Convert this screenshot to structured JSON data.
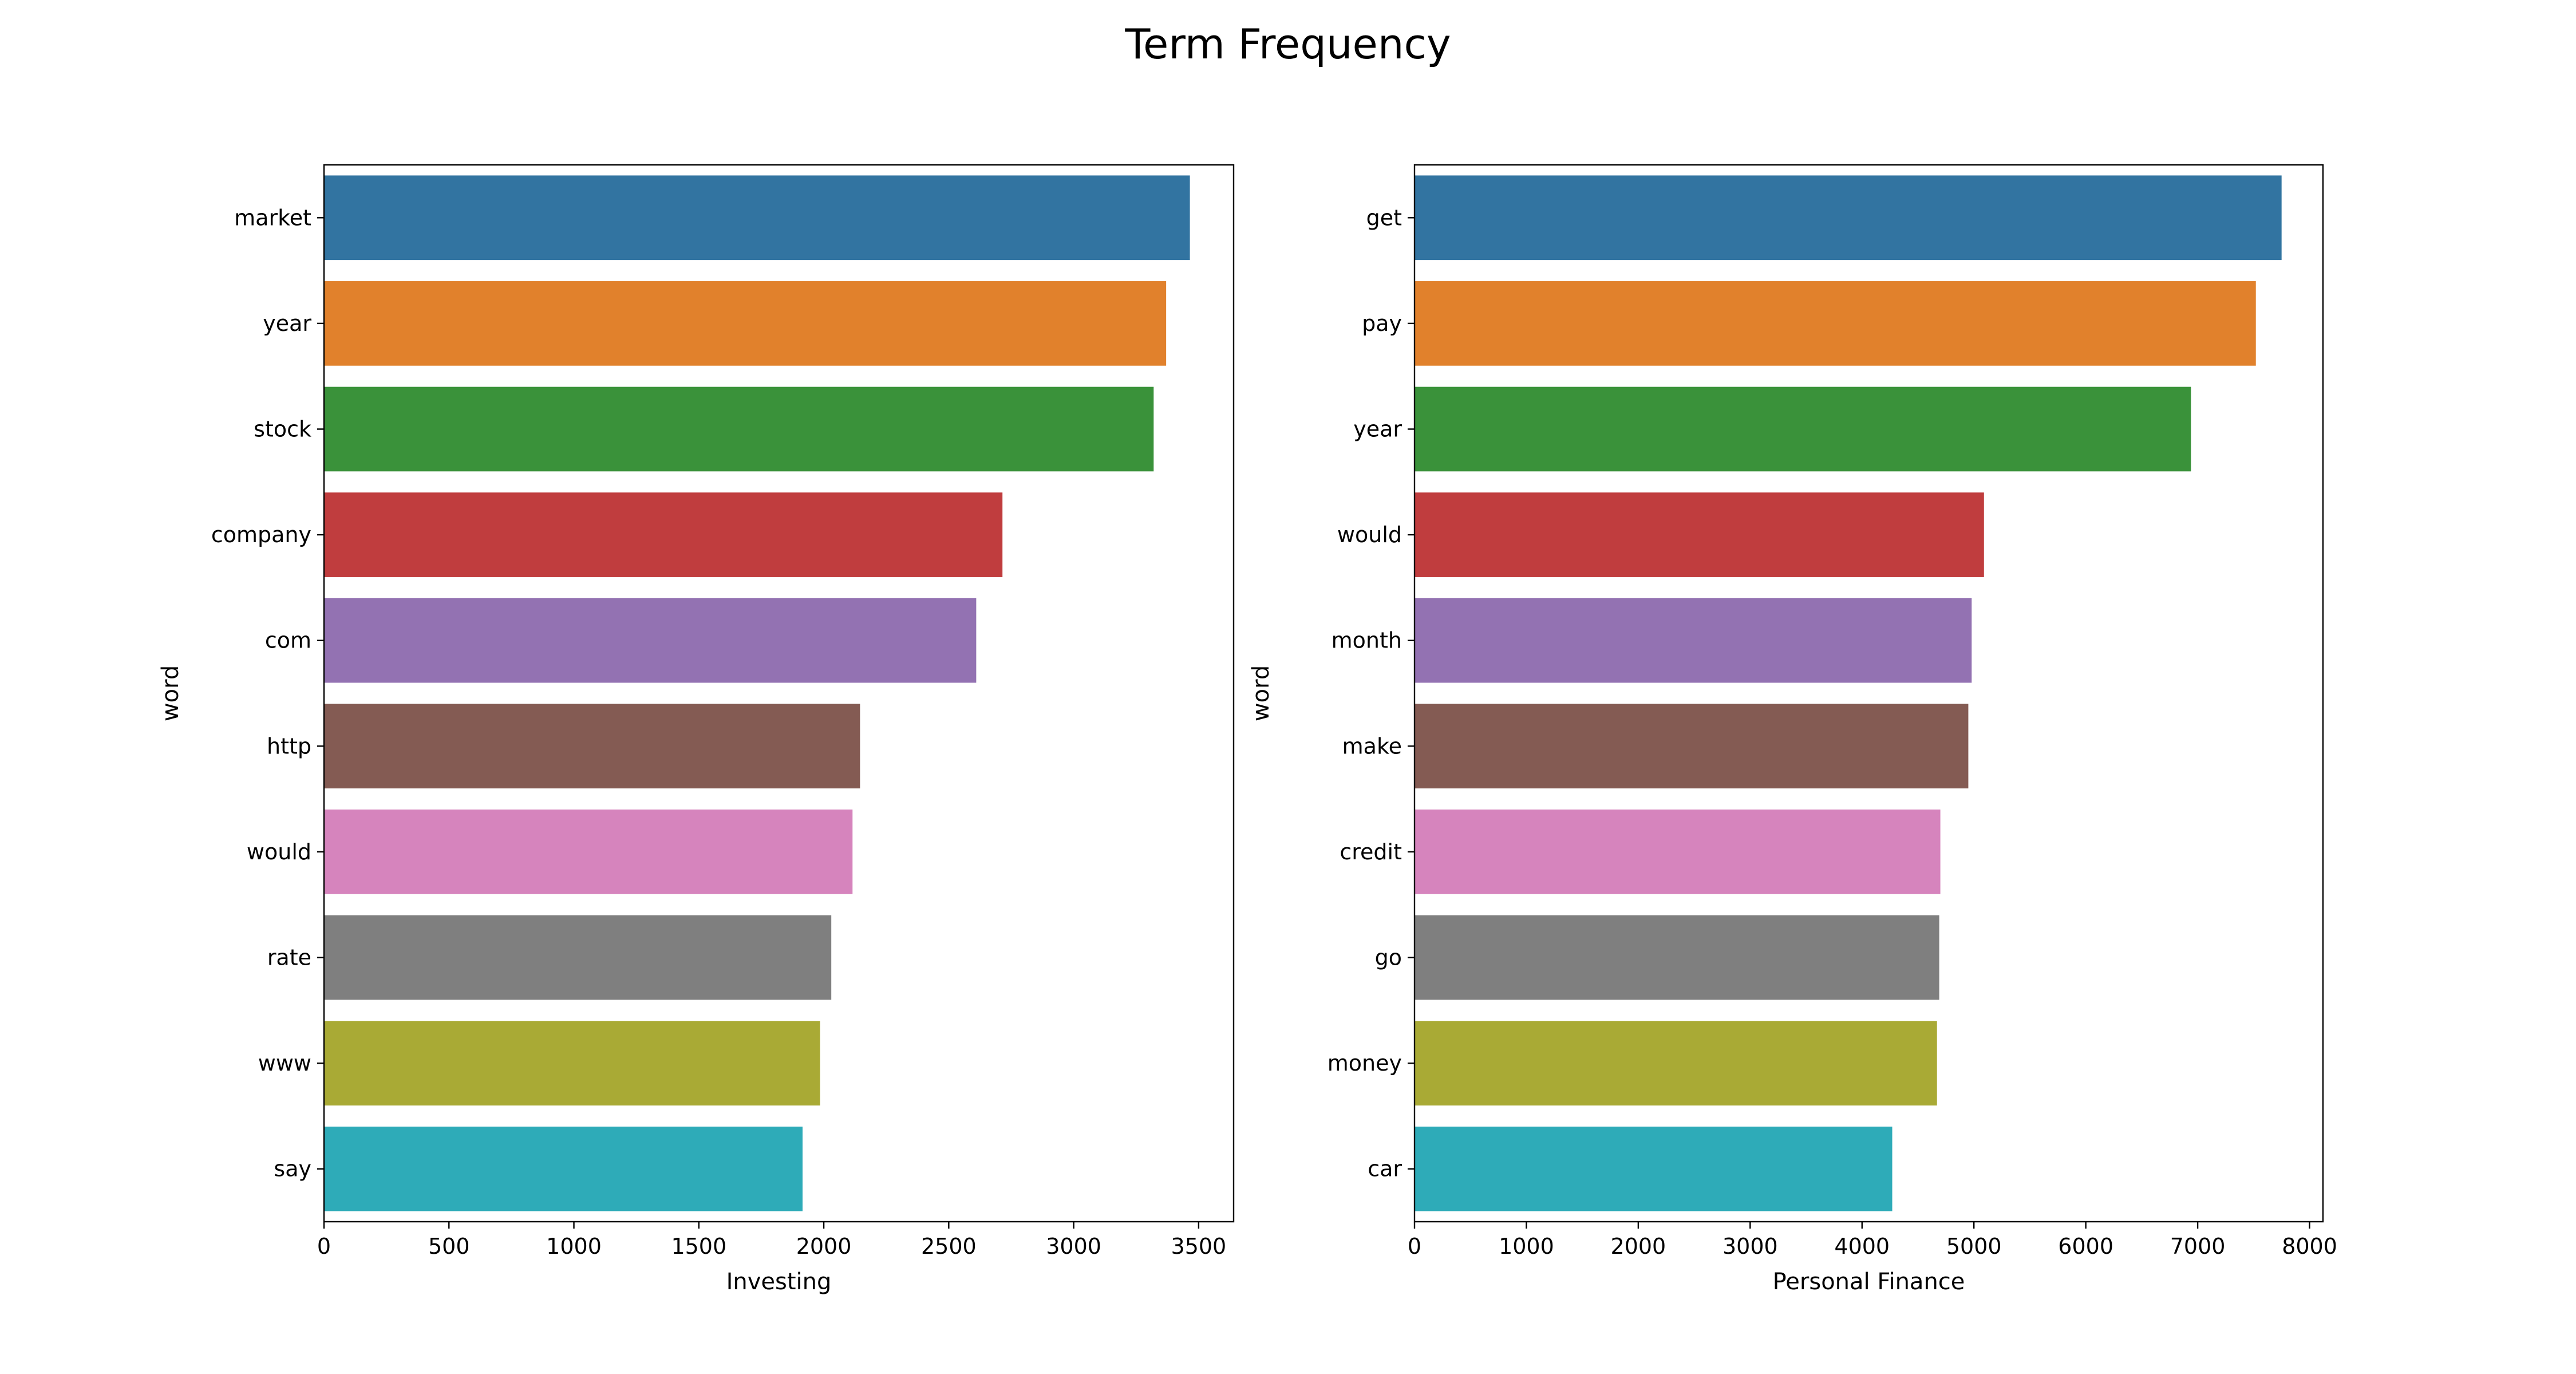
{
  "figure": {
    "title": "Term Frequency"
  },
  "palette": [
    "#3274a1",
    "#e1812c",
    "#3a923a",
    "#c03d3e",
    "#9372b2",
    "#845b53",
    "#d684bd",
    "#7f7f7f",
    "#a9aa35",
    "#2eabb8"
  ],
  "chart_data": [
    {
      "type": "bar",
      "orientation": "horizontal",
      "categories": [
        "market",
        "year",
        "stock",
        "company",
        "com",
        "http",
        "would",
        "rate",
        "www",
        "say"
      ],
      "values": [
        3465,
        3370,
        3320,
        2715,
        2610,
        2145,
        2115,
        2030,
        1985,
        1915
      ],
      "xlabel": "Investing",
      "ylabel": "word",
      "xlim": [
        0,
        3640
      ],
      "xticks": [
        0,
        500,
        1000,
        1500,
        2000,
        2500,
        3000,
        3500
      ],
      "grid": false,
      "legend": "none"
    },
    {
      "type": "bar",
      "orientation": "horizontal",
      "categories": [
        "get",
        "pay",
        "year",
        "would",
        "month",
        "make",
        "credit",
        "go",
        "money",
        "car"
      ],
      "values": [
        7750,
        7520,
        6940,
        5090,
        4980,
        4950,
        4700,
        4690,
        4670,
        4270
      ],
      "xlabel": "Personal Finance",
      "ylabel": "word",
      "xlim": [
        0,
        8120
      ],
      "xticks": [
        0,
        1000,
        2000,
        3000,
        4000,
        5000,
        6000,
        7000,
        8000
      ],
      "grid": false,
      "legend": "none"
    }
  ]
}
